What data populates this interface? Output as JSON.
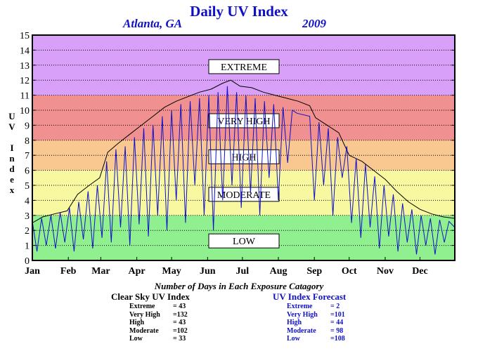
{
  "title": "Daily UV Index",
  "subtitle_city": "Atlanta, GA",
  "subtitle_year": "2009",
  "ylabel": "UV Index",
  "days_title": "Number of Days in Each Exposure Catagory",
  "clear_sky": {
    "heading": "Clear Sky UV Index",
    "rows": [
      {
        "label": "Extreme",
        "value": "=  43"
      },
      {
        "label": "Very High",
        "value": "=132"
      },
      {
        "label": "High",
        "value": "=  43"
      },
      {
        "label": "Moderate",
        "value": "=102"
      },
      {
        "label": "Low",
        "value": "=  33"
      }
    ]
  },
  "forecast": {
    "heading": "UV Index Forecast",
    "rows": [
      {
        "label": "Extreme",
        "value": "=    2"
      },
      {
        "label": "Very High",
        "value": "=101"
      },
      {
        "label": "High",
        "value": "=  44"
      },
      {
        "label": "Moderate",
        "value": "=  98"
      },
      {
        "label": "Low",
        "value": "=108"
      }
    ]
  },
  "chart_data": {
    "type": "line",
    "title": "Daily UV Index",
    "xlabel": "",
    "ylabel": "UV Index",
    "ylim": [
      0,
      15
    ],
    "yticks": [
      0,
      1,
      2,
      3,
      4,
      5,
      6,
      7,
      8,
      9,
      10,
      11,
      12,
      13,
      14,
      15
    ],
    "xlim_day": [
      1,
      365
    ],
    "x_tick_labels": [
      "Jan",
      "Feb",
      "Mar",
      "Apr",
      "May",
      "Jun",
      "Jul",
      "Aug",
      "Sep",
      "Oct",
      "Nov",
      "Dec"
    ],
    "x_tick_days": [
      1,
      32,
      60,
      91,
      121,
      152,
      182,
      213,
      244,
      274,
      305,
      335
    ],
    "grid": true,
    "bands": [
      {
        "label": "LOW",
        "from": 0,
        "to": 3,
        "color": "#90f090"
      },
      {
        "label": "MODERATE",
        "from": 3,
        "to": 6,
        "color": "#f8f8a0"
      },
      {
        "label": "HIGH",
        "from": 6,
        "to": 8,
        "color": "#f8c890"
      },
      {
        "label": "VERY HIGH",
        "from": 8,
        "to": 11,
        "color": "#f09090"
      },
      {
        "label": "EXTREME",
        "from": 11,
        "to": 15,
        "color": "#d8a0f8"
      }
    ],
    "series": [
      {
        "name": "Clear Sky UV Index",
        "color": "#000000",
        "points": [
          [
            1,
            2.5
          ],
          [
            10,
            2.9
          ],
          [
            20,
            3.1
          ],
          [
            31,
            3.3
          ],
          [
            40,
            4.4
          ],
          [
            50,
            5.0
          ],
          [
            59,
            5.5
          ],
          [
            66,
            7.2
          ],
          [
            75,
            7.8
          ],
          [
            85,
            8.4
          ],
          [
            95,
            9.0
          ],
          [
            105,
            9.6
          ],
          [
            115,
            10.2
          ],
          [
            125,
            10.6
          ],
          [
            135,
            10.9
          ],
          [
            145,
            11.2
          ],
          [
            155,
            11.4
          ],
          [
            165,
            11.8
          ],
          [
            172,
            12.0
          ],
          [
            180,
            11.6
          ],
          [
            190,
            11.5
          ],
          [
            200,
            11.2
          ],
          [
            210,
            11.0
          ],
          [
            220,
            10.8
          ],
          [
            230,
            10.6
          ],
          [
            240,
            10.3
          ],
          [
            245,
            9.5
          ],
          [
            255,
            9.0
          ],
          [
            265,
            8.5
          ],
          [
            274,
            7.0
          ],
          [
            285,
            6.6
          ],
          [
            295,
            6.0
          ],
          [
            305,
            5.4
          ],
          [
            315,
            4.6
          ],
          [
            325,
            3.9
          ],
          [
            335,
            3.4
          ],
          [
            345,
            3.1
          ],
          [
            355,
            2.9
          ],
          [
            365,
            2.8
          ]
        ]
      },
      {
        "name": "UV Index Forecast",
        "color": "#1010c8",
        "points": [
          [
            1,
            2.6
          ],
          [
            5,
            0.6
          ],
          [
            9,
            2.8
          ],
          [
            13,
            1.0
          ],
          [
            17,
            3.0
          ],
          [
            21,
            0.8
          ],
          [
            25,
            3.2
          ],
          [
            29,
            1.2
          ],
          [
            33,
            3.5
          ],
          [
            37,
            0.6
          ],
          [
            41,
            3.9
          ],
          [
            45,
            1.4
          ],
          [
            49,
            4.6
          ],
          [
            53,
            0.8
          ],
          [
            57,
            5.0
          ],
          [
            61,
            1.5
          ],
          [
            65,
            6.6
          ],
          [
            69,
            1.2
          ],
          [
            73,
            7.4
          ],
          [
            77,
            2.2
          ],
          [
            81,
            7.6
          ],
          [
            85,
            1.0
          ],
          [
            89,
            8.2
          ],
          [
            93,
            2.4
          ],
          [
            97,
            8.8
          ],
          [
            101,
            1.6
          ],
          [
            105,
            9.0
          ],
          [
            109,
            3.0
          ],
          [
            113,
            9.6
          ],
          [
            117,
            2.0
          ],
          [
            121,
            10.0
          ],
          [
            125,
            4.0
          ],
          [
            129,
            10.4
          ],
          [
            133,
            2.5
          ],
          [
            137,
            10.6
          ],
          [
            141,
            5.0
          ],
          [
            145,
            10.8
          ],
          [
            149,
            3.0
          ],
          [
            153,
            11.0
          ],
          [
            157,
            2.0
          ],
          [
            161,
            11.2
          ],
          [
            165,
            4.0
          ],
          [
            169,
            11.6
          ],
          [
            173,
            5.0
          ],
          [
            177,
            11.2
          ],
          [
            181,
            3.5
          ],
          [
            185,
            11.0
          ],
          [
            189,
            4.5
          ],
          [
            193,
            10.8
          ],
          [
            197,
            3.0
          ],
          [
            201,
            10.6
          ],
          [
            205,
            5.5
          ],
          [
            209,
            10.4
          ],
          [
            213,
            4.0
          ],
          [
            217,
            10.2
          ],
          [
            221,
            6.5
          ],
          [
            225,
            10.0
          ],
          [
            229,
            9.8
          ],
          [
            240,
            9.6
          ],
          [
            244,
            4.0
          ],
          [
            248,
            9.2
          ],
          [
            252,
            5.0
          ],
          [
            256,
            8.8
          ],
          [
            260,
            3.0
          ],
          [
            264,
            8.2
          ],
          [
            268,
            5.5
          ],
          [
            272,
            7.6
          ],
          [
            276,
            2.5
          ],
          [
            280,
            6.8
          ],
          [
            284,
            1.5
          ],
          [
            288,
            6.4
          ],
          [
            292,
            2.2
          ],
          [
            296,
            5.6
          ],
          [
            300,
            0.8
          ],
          [
            304,
            5.0
          ],
          [
            308,
            1.6
          ],
          [
            312,
            4.4
          ],
          [
            316,
            0.6
          ],
          [
            320,
            3.8
          ],
          [
            324,
            1.2
          ],
          [
            328,
            3.4
          ],
          [
            332,
            0.4
          ],
          [
            336,
            3.0
          ],
          [
            340,
            1.0
          ],
          [
            344,
            2.8
          ],
          [
            348,
            0.4
          ],
          [
            352,
            2.7
          ],
          [
            356,
            1.2
          ],
          [
            360,
            2.6
          ],
          [
            365,
            2.2
          ]
        ]
      }
    ]
  }
}
